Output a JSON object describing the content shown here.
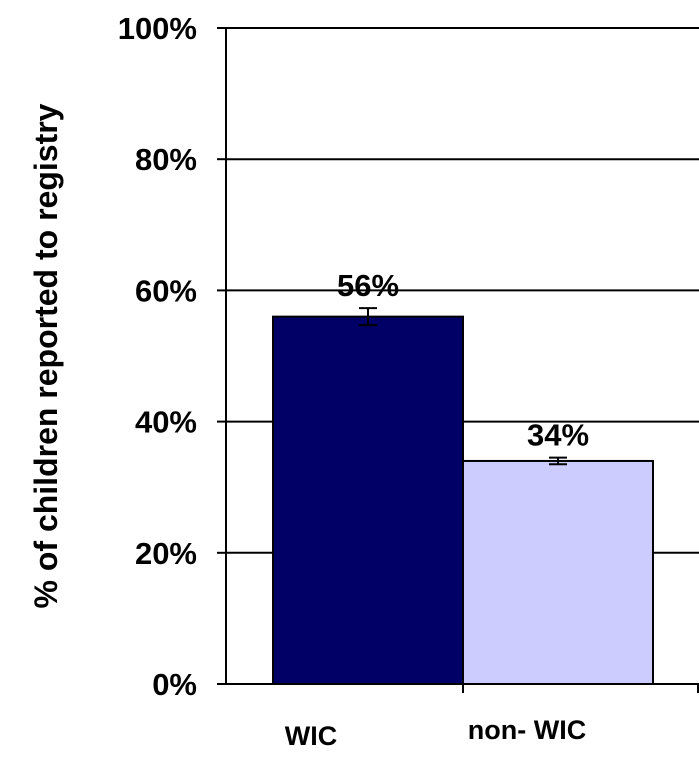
{
  "chart_data": {
    "type": "bar",
    "title": "",
    "xlabel": "",
    "ylabel": "% of children reported to registry",
    "categories": [
      "WIC",
      "non- WIC"
    ],
    "values": [
      56,
      34
    ],
    "errors": [
      1.3,
      0.5
    ],
    "data_labels": [
      "56%",
      "34%"
    ],
    "ylim": [
      0,
      100
    ],
    "yticks": [
      0,
      20,
      40,
      60,
      80,
      100
    ],
    "ytick_labels": [
      "0%",
      "20%",
      "40%",
      "60%",
      "80%",
      "100%"
    ],
    "grid": true,
    "legend": "none",
    "bar_colors": [
      "#000066",
      "#ccccff"
    ]
  }
}
